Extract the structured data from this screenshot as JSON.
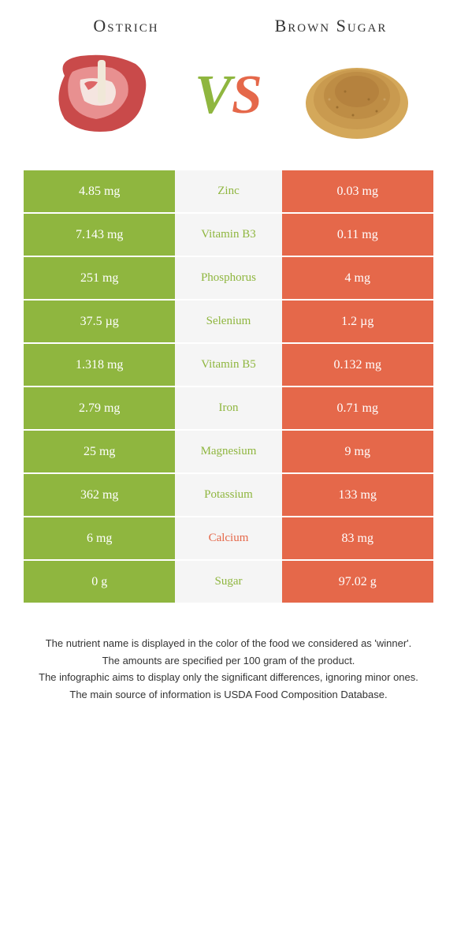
{
  "header": {
    "left_title": "Ostrich",
    "right_title": "Brown Sugar",
    "vs_v": "V",
    "vs_s": "S"
  },
  "colors": {
    "left": "#8fb63f",
    "right": "#e5684a",
    "mid_bg": "#f5f5f5",
    "text_light": "#ffffff"
  },
  "rows": [
    {
      "left": "4.85 mg",
      "label": "Zinc",
      "right": "0.03 mg",
      "winner": "left"
    },
    {
      "left": "7.143 mg",
      "label": "Vitamin B3",
      "right": "0.11 mg",
      "winner": "left"
    },
    {
      "left": "251 mg",
      "label": "Phosphorus",
      "right": "4 mg",
      "winner": "left"
    },
    {
      "left": "37.5 µg",
      "label": "Selenium",
      "right": "1.2 µg",
      "winner": "left"
    },
    {
      "left": "1.318 mg",
      "label": "Vitamin B5",
      "right": "0.132 mg",
      "winner": "left"
    },
    {
      "left": "2.79 mg",
      "label": "Iron",
      "right": "0.71 mg",
      "winner": "left"
    },
    {
      "left": "25 mg",
      "label": "Magnesium",
      "right": "9 mg",
      "winner": "left"
    },
    {
      "left": "362 mg",
      "label": "Potassium",
      "right": "133 mg",
      "winner": "left"
    },
    {
      "left": "6 mg",
      "label": "Calcium",
      "right": "83 mg",
      "winner": "right"
    },
    {
      "left": "0 g",
      "label": "Sugar",
      "right": "97.02 g",
      "winner": "left"
    }
  ],
  "footnotes": [
    "The nutrient name is displayed in the color of the food we considered as 'winner'.",
    "The amounts are specified per 100 gram of the product.",
    "The infographic aims to display only the significant differences, ignoring minor ones.",
    "The main source of information is USDA Food Composition Database."
  ]
}
